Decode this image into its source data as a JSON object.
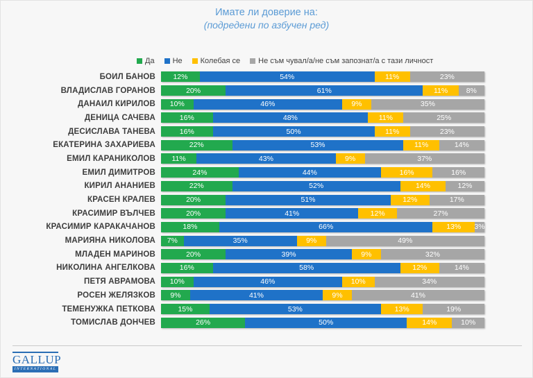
{
  "title": {
    "line1": "Имате ли доверие на:",
    "line2": "(подредени по азбучен ред)"
  },
  "legend": [
    {
      "label": "Да",
      "color": "#22A94E"
    },
    {
      "label": "Не",
      "color": "#1F72C8"
    },
    {
      "label": "Колебая се",
      "color": "#FFC000"
    },
    {
      "label": "Не съм чувал/а/не съм запознат/а с тази личност",
      "color": "#A6A6A6"
    }
  ],
  "chart_data": {
    "type": "bar",
    "orientation": "horizontal-stacked",
    "title": "Имате ли доверие на:",
    "subtitle": "(подредени по азбучен ред)",
    "xlim": [
      0,
      100
    ],
    "value_suffix": "%",
    "grid": false,
    "legend_position": "top",
    "categories": [
      "БОИЛ БАНОВ",
      "ВЛАДИСЛАВ ГОРАНОВ",
      "ДАНАИЛ КИРИЛОВ",
      "ДЕНИЦА САЧЕВА",
      "ДЕСИСЛАВА ТАНЕВА",
      "ЕКАТЕРИНА ЗАХАРИЕВА",
      "ЕМИЛ КАРАНИКОЛОВ",
      "ЕМИЛ ДИМИТРОВ",
      "КИРИЛ АНАНИЕВ",
      "КРАСЕН КРАЛЕВ",
      "КРАСИМИР ВЪЛЧЕВ",
      "КРАСИМИР КАРАКАЧАНОВ",
      "МАРИЯНА НИКОЛОВА",
      "МЛАДЕН МАРИНОВ",
      "НИКОЛИНА АНГЕЛКОВА",
      "ПЕТЯ АВРАМОВА",
      "РОСЕН ЖЕЛЯЗКОВ",
      "ТЕМЕНУЖКА ПЕТКОВА",
      "ТОМИСЛАВ ДОНЧЕВ"
    ],
    "series": [
      {
        "name": "Да",
        "color": "#22A94E",
        "values": [
          12,
          20,
          10,
          16,
          16,
          22,
          11,
          24,
          22,
          20,
          20,
          18,
          7,
          20,
          16,
          10,
          9,
          15,
          26
        ]
      },
      {
        "name": "Не",
        "color": "#1F72C8",
        "values": [
          54,
          61,
          46,
          48,
          50,
          53,
          43,
          44,
          52,
          51,
          41,
          66,
          35,
          39,
          58,
          46,
          41,
          53,
          50
        ]
      },
      {
        "name": "Колебая се",
        "color": "#FFC000",
        "values": [
          11,
          11,
          9,
          11,
          11,
          11,
          9,
          16,
          14,
          12,
          12,
          13,
          9,
          9,
          12,
          10,
          9,
          13,
          14
        ]
      },
      {
        "name": "Не съм чувал/а/не съм запознат/а с тази личност",
        "color": "#A6A6A6",
        "values": [
          23,
          8,
          35,
          25,
          23,
          14,
          37,
          16,
          12,
          17,
          27,
          3,
          49,
          32,
          14,
          34,
          41,
          19,
          10
        ]
      }
    ]
  },
  "footer": {
    "logo_line1": "GALLUP",
    "logo_line2": "INTERNATIONAL"
  }
}
